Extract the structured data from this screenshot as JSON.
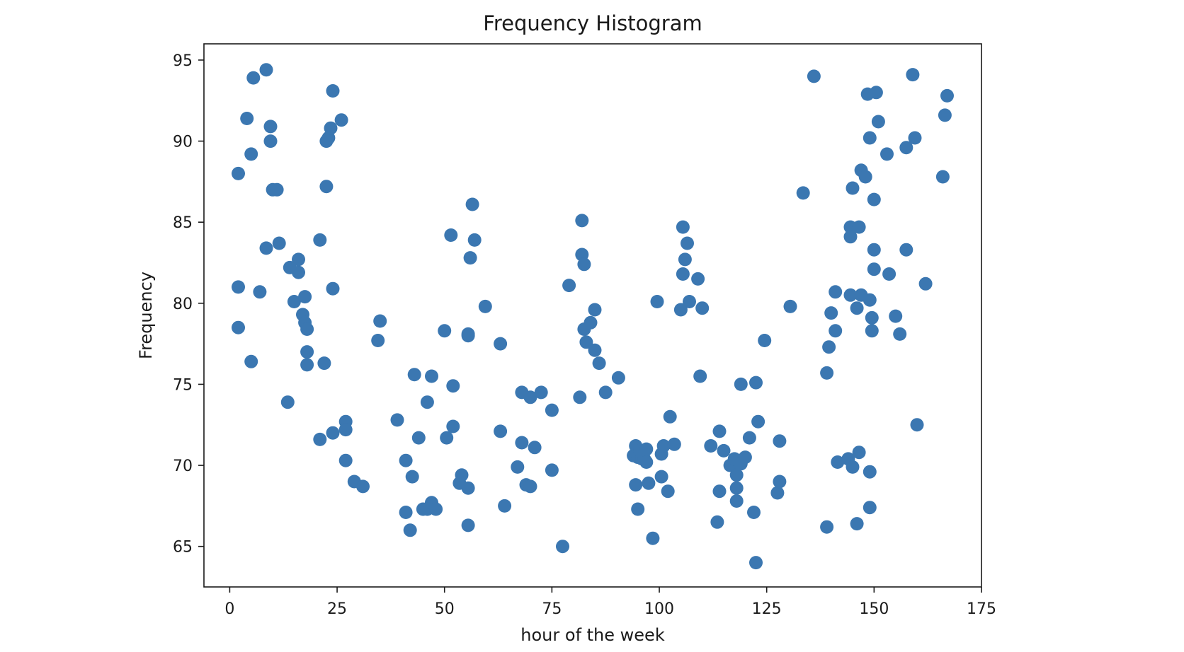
{
  "chart_data": {
    "type": "scatter",
    "title": "Frequency Histogram",
    "xlabel": "hour of the week",
    "ylabel": "Frequency",
    "xlim": [
      -6,
      175
    ],
    "ylim": [
      62.5,
      96
    ],
    "xticks": [
      0,
      25,
      50,
      75,
      100,
      125,
      150,
      175
    ],
    "yticks": [
      65,
      70,
      75,
      80,
      85,
      90,
      95
    ],
    "grid": false,
    "marker_color": "#3b77b1",
    "points": [
      [
        2,
        88
      ],
      [
        2,
        81
      ],
      [
        2,
        78.5
      ],
      [
        4,
        91.4
      ],
      [
        5,
        89.2
      ],
      [
        5,
        76.4
      ],
      [
        5.5,
        93.9
      ],
      [
        7,
        80.7
      ],
      [
        8.5,
        94.4
      ],
      [
        8.5,
        83.4
      ],
      [
        9.5,
        90.9
      ],
      [
        9.5,
        90.0
      ],
      [
        10,
        87.0
      ],
      [
        11,
        87.0
      ],
      [
        11.5,
        83.7
      ],
      [
        13.5,
        73.9
      ],
      [
        14,
        82.2
      ],
      [
        15,
        80.1
      ],
      [
        16,
        81.9
      ],
      [
        16,
        82.7
      ],
      [
        17,
        79.3
      ],
      [
        17.5,
        80.4
      ],
      [
        17.5,
        78.8
      ],
      [
        18,
        78.4
      ],
      [
        18,
        77.0
      ],
      [
        18,
        76.2
      ],
      [
        21,
        83.9
      ],
      [
        21,
        71.6
      ],
      [
        22,
        76.3
      ],
      [
        22.5,
        87.2
      ],
      [
        22.5,
        90.0
      ],
      [
        23,
        90.2
      ],
      [
        23.5,
        90.8
      ],
      [
        24,
        72.0
      ],
      [
        24,
        80.9
      ],
      [
        24,
        93.1
      ],
      [
        26,
        91.3
      ],
      [
        27,
        72.7
      ],
      [
        27,
        72.2
      ],
      [
        27,
        70.3
      ],
      [
        29,
        69.0
      ],
      [
        31,
        68.7
      ],
      [
        34.5,
        77.7
      ],
      [
        35,
        78.9
      ],
      [
        39,
        72.8
      ],
      [
        41,
        67.1
      ],
      [
        41,
        70.3
      ],
      [
        42,
        66.0
      ],
      [
        42.5,
        69.3
      ],
      [
        43,
        75.6
      ],
      [
        44,
        71.7
      ],
      [
        45,
        67.3
      ],
      [
        46,
        73.9
      ],
      [
        46,
        67.3
      ],
      [
        47,
        75.5
      ],
      [
        47,
        67.7
      ],
      [
        48,
        67.3
      ],
      [
        50,
        78.3
      ],
      [
        50.5,
        71.7
      ],
      [
        51.5,
        84.2
      ],
      [
        52,
        74.9
      ],
      [
        52,
        72.4
      ],
      [
        53.5,
        68.9
      ],
      [
        54,
        69.4
      ],
      [
        55.5,
        78.1
      ],
      [
        55.5,
        78.0
      ],
      [
        55.5,
        68.6
      ],
      [
        55.5,
        66.3
      ],
      [
        56,
        82.8
      ],
      [
        56.5,
        86.1
      ],
      [
        57,
        83.9
      ],
      [
        59.5,
        79.8
      ],
      [
        63,
        72.1
      ],
      [
        63,
        77.5
      ],
      [
        64,
        67.5
      ],
      [
        67,
        69.9
      ],
      [
        68,
        74.5
      ],
      [
        68,
        71.4
      ],
      [
        69,
        68.8
      ],
      [
        70,
        74.2
      ],
      [
        70,
        68.7
      ],
      [
        71,
        71.1
      ],
      [
        72.5,
        74.5
      ],
      [
        75,
        73.4
      ],
      [
        75,
        69.7
      ],
      [
        77.5,
        65.0
      ],
      [
        79,
        81.1
      ],
      [
        81.5,
        74.2
      ],
      [
        82,
        85.1
      ],
      [
        82,
        83.0
      ],
      [
        82.5,
        82.4
      ],
      [
        82.5,
        78.4
      ],
      [
        83,
        77.6
      ],
      [
        84,
        78.8
      ],
      [
        85,
        79.6
      ],
      [
        85,
        77.1
      ],
      [
        86,
        76.3
      ],
      [
        87.5,
        74.5
      ],
      [
        90.5,
        75.4
      ],
      [
        94,
        70.6
      ],
      [
        94.5,
        71.2
      ],
      [
        94.5,
        68.8
      ],
      [
        95,
        67.3
      ],
      [
        95,
        70.5
      ],
      [
        95.5,
        70.9
      ],
      [
        96,
        70.4
      ],
      [
        96.5,
        70.4
      ],
      [
        97,
        71.0
      ],
      [
        97,
        70.2
      ],
      [
        97.5,
        68.9
      ],
      [
        98.5,
        65.5
      ],
      [
        99.5,
        80.1
      ],
      [
        100.5,
        69.3
      ],
      [
        100.5,
        70.7
      ],
      [
        101,
        71.2
      ],
      [
        102,
        68.4
      ],
      [
        102.5,
        73.0
      ],
      [
        103.5,
        71.3
      ],
      [
        105,
        79.6
      ],
      [
        105.5,
        81.8
      ],
      [
        105.5,
        84.7
      ],
      [
        106,
        82.7
      ],
      [
        106.5,
        83.7
      ],
      [
        107,
        80.1
      ],
      [
        109,
        81.5
      ],
      [
        109.5,
        75.5
      ],
      [
        110,
        79.7
      ],
      [
        112,
        71.2
      ],
      [
        113.5,
        66.5
      ],
      [
        114,
        68.4
      ],
      [
        114,
        72.1
      ],
      [
        115,
        70.9
      ],
      [
        116.5,
        70.0
      ],
      [
        117.5,
        70.4
      ],
      [
        118,
        69.4
      ],
      [
        118,
        68.6
      ],
      [
        118,
        67.8
      ],
      [
        119,
        75.0
      ],
      [
        119,
        70.1
      ],
      [
        120,
        70.5
      ],
      [
        121,
        71.7
      ],
      [
        122,
        67.1
      ],
      [
        122.5,
        75.1
      ],
      [
        122.5,
        64.0
      ],
      [
        123,
        72.7
      ],
      [
        124.5,
        77.7
      ],
      [
        127.5,
        68.3
      ],
      [
        128,
        71.5
      ],
      [
        128,
        69.0
      ],
      [
        130.5,
        79.8
      ],
      [
        133.5,
        86.8
      ],
      [
        136,
        94.0
      ],
      [
        139,
        75.7
      ],
      [
        139,
        66.2
      ],
      [
        139.5,
        77.3
      ],
      [
        140,
        79.4
      ],
      [
        141,
        80.7
      ],
      [
        141,
        78.3
      ],
      [
        141.5,
        70.2
      ],
      [
        144,
        70.4
      ],
      [
        144.5,
        84.7
      ],
      [
        144.5,
        84.1
      ],
      [
        144.5,
        80.5
      ],
      [
        145,
        87.1
      ],
      [
        145,
        69.9
      ],
      [
        146,
        66.4
      ],
      [
        146,
        79.7
      ],
      [
        146.5,
        70.8
      ],
      [
        146.5,
        84.7
      ],
      [
        147,
        88.2
      ],
      [
        147,
        80.5
      ],
      [
        148,
        87.8
      ],
      [
        148.5,
        92.9
      ],
      [
        149,
        90.2
      ],
      [
        149,
        80.2
      ],
      [
        149,
        69.6
      ],
      [
        149,
        67.4
      ],
      [
        149.5,
        78.3
      ],
      [
        149.5,
        79.1
      ],
      [
        150,
        86.4
      ],
      [
        150,
        83.3
      ],
      [
        150,
        82.1
      ],
      [
        150.5,
        93.0
      ],
      [
        151,
        91.2
      ],
      [
        153,
        89.2
      ],
      [
        153.5,
        81.8
      ],
      [
        155,
        79.2
      ],
      [
        156,
        78.1
      ],
      [
        157.5,
        83.3
      ],
      [
        157.5,
        89.6
      ],
      [
        159,
        94.1
      ],
      [
        159.5,
        90.2
      ],
      [
        160,
        72.5
      ],
      [
        162,
        81.2
      ],
      [
        166,
        87.8
      ],
      [
        166.5,
        91.6
      ],
      [
        167,
        92.8
      ]
    ]
  }
}
